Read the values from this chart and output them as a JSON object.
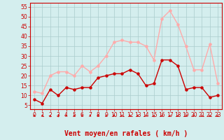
{
  "hours": [
    0,
    1,
    2,
    3,
    4,
    5,
    6,
    7,
    8,
    9,
    10,
    11,
    12,
    13,
    14,
    15,
    16,
    17,
    18,
    19,
    20,
    21,
    22,
    23
  ],
  "wind_avg": [
    8,
    6,
    13,
    10,
    14,
    13,
    14,
    14,
    19,
    20,
    21,
    21,
    23,
    21,
    15,
    16,
    28,
    28,
    25,
    13,
    14,
    14,
    9,
    10
  ],
  "wind_gust": [
    12,
    11,
    20,
    22,
    22,
    20,
    25,
    22,
    25,
    30,
    37,
    38,
    37,
    37,
    35,
    28,
    49,
    53,
    46,
    35,
    23,
    23,
    36,
    16
  ],
  "avg_color": "#cc0000",
  "gust_color": "#ffaaaa",
  "bg_color": "#d4eeee",
  "grid_color": "#aacccc",
  "ylim": [
    3,
    57
  ],
  "yticks": [
    5,
    10,
    15,
    20,
    25,
    30,
    35,
    40,
    45,
    50,
    55
  ],
  "xlabel": "Vent moyen/en rafales ( km/h )",
  "tick_fontsize": 5.5,
  "xlabel_fontsize": 7,
  "wind_dirs": [
    180,
    180,
    225,
    225,
    180,
    180,
    180,
    180,
    180,
    180,
    180,
    180,
    180,
    180,
    180,
    225,
    90,
    90,
    90,
    45,
    45,
    45,
    270,
    315
  ]
}
